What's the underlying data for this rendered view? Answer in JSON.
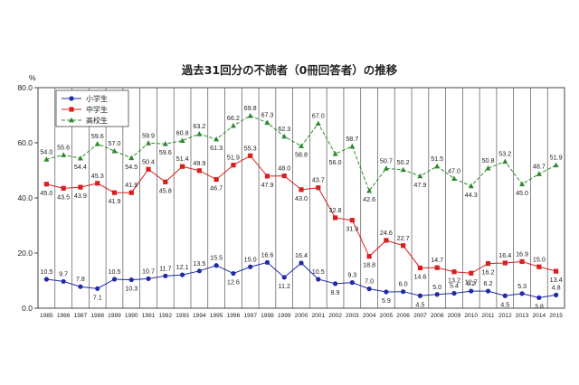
{
  "chart_data": {
    "type": "line",
    "title": "過去31回分の不読者（0冊回答者）の推移",
    "ylabel": "%",
    "xlabel": "",
    "ylim": [
      0,
      80
    ],
    "yticks": [
      "0.0",
      "20.0",
      "40.0",
      "60.0",
      "80.0"
    ],
    "grid": {
      "vertical": true,
      "horizontal": false
    },
    "legend_position": "top-left",
    "x": [
      "1985",
      "1986",
      "1987",
      "1988",
      "1989",
      "1990",
      "1991",
      "1992",
      "1993",
      "1994",
      "1995",
      "1996",
      "1997",
      "1998",
      "1999",
      "2000",
      "2001",
      "2002",
      "2003",
      "2004",
      "2005",
      "2006",
      "2007",
      "2008",
      "2009",
      "2010",
      "2011",
      "2012",
      "2013",
      "2014",
      "2015"
    ],
    "series": [
      {
        "name": "小学生",
        "color": "#1f2aa8",
        "marker": "circle",
        "dash": "solid",
        "values": [
          10.5,
          9.7,
          7.8,
          7.1,
          10.5,
          10.3,
          10.7,
          11.7,
          12.1,
          13.5,
          15.5,
          12.6,
          15.0,
          16.6,
          11.2,
          16.4,
          10.5,
          8.9,
          9.3,
          7.0,
          5.9,
          6.0,
          4.5,
          5.0,
          5.4,
          6.2,
          6.2,
          4.5,
          5.3,
          3.8,
          4.8
        ]
      },
      {
        "name": "中学生",
        "color": "#d81f1f",
        "marker": "square",
        "dash": "solid",
        "values": [
          45.0,
          43.5,
          43.9,
          45.3,
          41.9,
          41.9,
          50.4,
          45.8,
          51.4,
          49.9,
          46.7,
          51.9,
          55.3,
          47.9,
          48.0,
          43.0,
          43.7,
          32.8,
          31.9,
          18.8,
          24.6,
          22.7,
          14.6,
          14.7,
          13.2,
          12.7,
          16.2,
          16.4,
          16.9,
          15.0,
          13.4
        ]
      },
      {
        "name": "高校生",
        "color": "#2e8a2e",
        "marker": "triangle",
        "dash": "dashed",
        "values": [
          54.0,
          55.6,
          54.4,
          59.6,
          57.0,
          54.5,
          59.9,
          59.6,
          60.8,
          63.2,
          61.3,
          66.2,
          69.8,
          67.3,
          62.3,
          58.8,
          67.0,
          56.0,
          58.7,
          42.6,
          50.7,
          50.2,
          47.9,
          51.5,
          47.0,
          44.3,
          50.8,
          53.2,
          45.0,
          48.7,
          51.9
        ]
      }
    ]
  }
}
